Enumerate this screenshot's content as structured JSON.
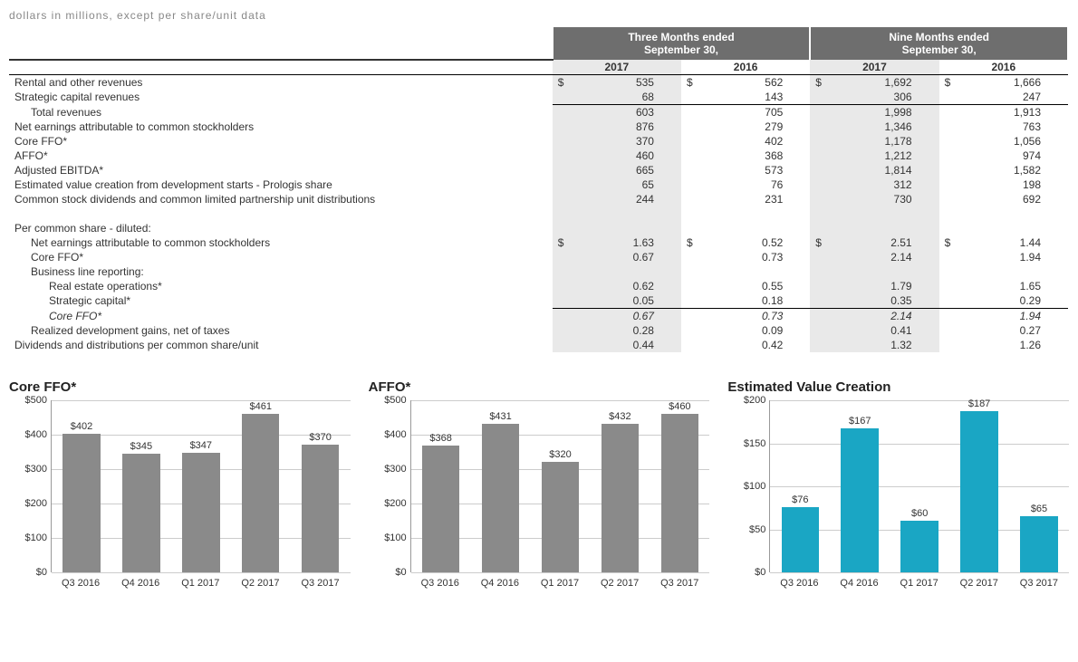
{
  "caption": "dollars in millions, except per share/unit data",
  "table": {
    "group_headers": [
      "Three Months ended\nSeptember 30,",
      "Nine Months ended\nSeptember 30,"
    ],
    "year_headers": [
      "2017",
      "2016",
      "2017",
      "2016"
    ],
    "rows": [
      {
        "label": "Rental and other revenues",
        "indent": 0,
        "curr": "$",
        "vals": [
          "535",
          "562",
          "1,692",
          "1,666"
        ]
      },
      {
        "label": "Strategic capital revenues",
        "indent": 0,
        "vals": [
          "68",
          "143",
          "306",
          "247"
        ]
      },
      {
        "label": "Total revenues",
        "indent": 1,
        "topline": true,
        "vals": [
          "603",
          "705",
          "1,998",
          "1,913"
        ]
      },
      {
        "label": "Net earnings attributable to common stockholders",
        "indent": 0,
        "vals": [
          "876",
          "279",
          "1,346",
          "763"
        ]
      },
      {
        "label": "Core FFO*",
        "indent": 0,
        "vals": [
          "370",
          "402",
          "1,178",
          "1,056"
        ]
      },
      {
        "label": "AFFO*",
        "indent": 0,
        "vals": [
          "460",
          "368",
          "1,212",
          "974"
        ]
      },
      {
        "label": "Adjusted EBITDA*",
        "indent": 0,
        "vals": [
          "665",
          "573",
          "1,814",
          "1,582"
        ]
      },
      {
        "label": "Estimated value creation from development starts - Prologis share",
        "indent": 0,
        "vals": [
          "65",
          "76",
          "312",
          "198"
        ]
      },
      {
        "label": "Common stock dividends and common limited partnership unit distributions",
        "indent": 0,
        "vals": [
          "244",
          "231",
          "730",
          "692"
        ]
      },
      {
        "label": "",
        "blank": true
      },
      {
        "label": "Per common share - diluted:",
        "indent": 0,
        "vals": [
          "",
          "",
          "",
          ""
        ]
      },
      {
        "label": "Net earnings attributable to common stockholders",
        "indent": 1,
        "curr": "$",
        "vals": [
          "1.63",
          "0.52",
          "2.51",
          "1.44"
        ]
      },
      {
        "label": "Core FFO*",
        "indent": 1,
        "vals": [
          "0.67",
          "0.73",
          "2.14",
          "1.94"
        ]
      },
      {
        "label": "Business line reporting:",
        "indent": 1,
        "vals": [
          "",
          "",
          "",
          ""
        ]
      },
      {
        "label": "Real estate operations*",
        "indent": 2,
        "vals": [
          "0.62",
          "0.55",
          "1.79",
          "1.65"
        ]
      },
      {
        "label": "Strategic capital*",
        "indent": 2,
        "vals": [
          "0.05",
          "0.18",
          "0.35",
          "0.29"
        ]
      },
      {
        "label": "Core FFO*",
        "indent": 2,
        "italic": true,
        "topline": true,
        "vals": [
          "0.67",
          "0.73",
          "2.14",
          "1.94"
        ]
      },
      {
        "label": "Realized development gains, net of taxes",
        "indent": 1,
        "vals": [
          "0.28",
          "0.09",
          "0.41",
          "0.27"
        ]
      },
      {
        "label": "Dividends and distributions per common share/unit",
        "indent": 0,
        "vals": [
          "0.44",
          "0.42",
          "1.32",
          "1.26"
        ]
      }
    ]
  },
  "charts": [
    {
      "title": "Core FFO*",
      "type": "bar",
      "categories": [
        "Q3 2016",
        "Q4 2016",
        "Q1 2017",
        "Q2 2017",
        "Q3 2017"
      ],
      "values": [
        402,
        345,
        347,
        461,
        370
      ],
      "labels": [
        "$402",
        "$345",
        "$347",
        "$461",
        "$370"
      ],
      "bar_color": "#8a8a8a",
      "ymax": 500,
      "ytick": 100,
      "yprefix": "$",
      "grid_color": "#cccccc"
    },
    {
      "title": "AFFO*",
      "type": "bar",
      "categories": [
        "Q3 2016",
        "Q4 2016",
        "Q1 2017",
        "Q2 2017",
        "Q3 2017"
      ],
      "values": [
        368,
        431,
        320,
        432,
        460
      ],
      "labels": [
        "$368",
        "$431",
        "$320",
        "$432",
        "$460"
      ],
      "bar_color": "#8a8a8a",
      "ymax": 500,
      "ytick": 100,
      "yprefix": "$",
      "grid_color": "#cccccc"
    },
    {
      "title": "Estimated Value Creation",
      "type": "bar",
      "categories": [
        "Q3 2016",
        "Q4 2016",
        "Q1 2017",
        "Q2 2017",
        "Q3 2017"
      ],
      "values": [
        76,
        167,
        60,
        187,
        65
      ],
      "labels": [
        "$76",
        "$167",
        "$60",
        "$187",
        "$65"
      ],
      "bar_color": "#1aa6c4",
      "ymax": 200,
      "ytick": 50,
      "yprefix": "$",
      "grid_color": "#cccccc"
    }
  ]
}
